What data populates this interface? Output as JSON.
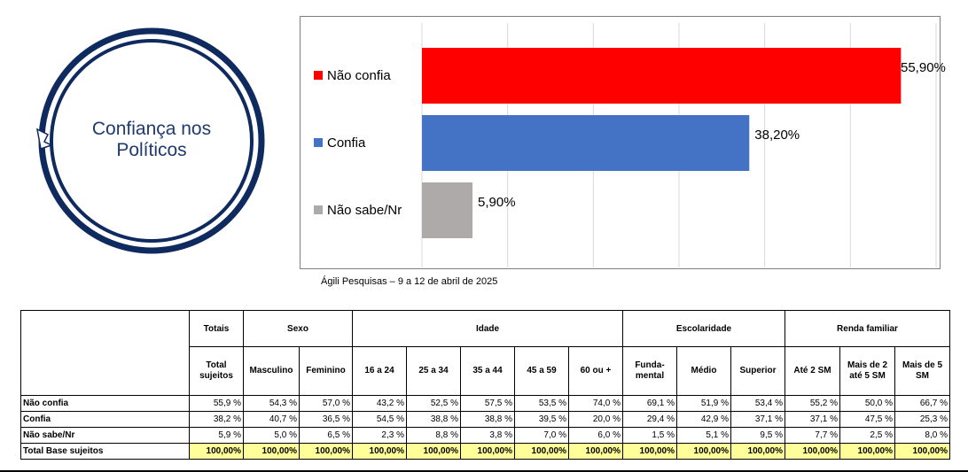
{
  "title": {
    "line1": "Confiança nos",
    "line2": "Políticos"
  },
  "source": "Ágili Pesquisas – 9 a 12 de abril de 2025",
  "colors": {
    "nao_confia": "#ff0000",
    "confia": "#4472c4",
    "nao_sabe": "#aeaaaa",
    "circle": "#0f2a5e",
    "total_fill": "#ffff99"
  },
  "chart_data": {
    "type": "bar",
    "orientation": "horizontal",
    "categories": [
      "Não confia",
      "Confia",
      "Não sabe/Nr"
    ],
    "values": [
      55.9,
      38.2,
      5.9
    ],
    "value_labels": [
      "55,90%",
      "38,20%",
      "5,90%"
    ],
    "xlim": [
      0,
      60
    ],
    "grid": true,
    "legend_position": "left"
  },
  "table": {
    "group_headers": [
      "Totais",
      "Sexo",
      "Idade",
      "Escolaridade",
      "Renda familiar"
    ],
    "sub_headers": [
      "Total sujeitos",
      "Masculino",
      "Feminino",
      "16 a 24",
      "25 a 34",
      "35 a 44",
      "45 a 59",
      "60 ou +",
      "Funda-mental",
      "Médio",
      "Superior",
      "Até 2 SM",
      "Mais de 2 até 5 SM",
      "Mais de 5 SM"
    ],
    "rows": [
      {
        "label": "Não confia",
        "values": [
          "55,9 %",
          "54,3 %",
          "57,0 %",
          "43,2 %",
          "52,5 %",
          "57,5 %",
          "53,5 %",
          "74,0 %",
          "69,1 %",
          "51,9 %",
          "53,4 %",
          "55,2 %",
          "50,0 %",
          "66,7 %"
        ]
      },
      {
        "label": "Confia",
        "values": [
          "38,2 %",
          "40,7 %",
          "36,5 %",
          "54,5 %",
          "38,8 %",
          "38,8 %",
          "39,5 %",
          "20,0 %",
          "29,4 %",
          "42,9 %",
          "37,1 %",
          "37,1 %",
          "47,5 %",
          "25,3 %"
        ]
      },
      {
        "label": "Não sabe/Nr",
        "values": [
          "5,9 %",
          "5,0 %",
          "6,5 %",
          "2,3 %",
          "8,8 %",
          "3,8 %",
          "7,0 %",
          "6,0 %",
          "1,5 %",
          "5,1 %",
          "9,5 %",
          "7,7 %",
          "2,5 %",
          "8,0 %"
        ]
      },
      {
        "label": "Total Base sujeitos",
        "values": [
          "100,00%",
          "100,00%",
          "100,00%",
          "100,00%",
          "100,00%",
          "100,00%",
          "100,00%",
          "100,00%",
          "100,00%",
          "100,00%",
          "100,00%",
          "100,00%",
          "100,00%",
          "100,00%"
        ]
      }
    ]
  }
}
